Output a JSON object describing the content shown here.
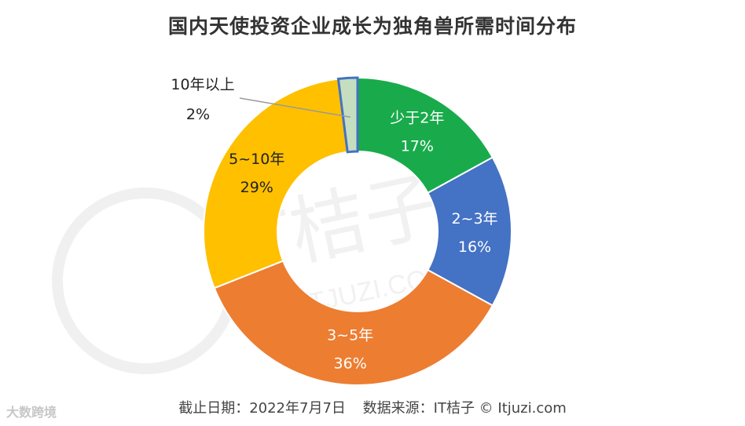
{
  "title": "国内天使投资企业成长为独角兽所需时间分布",
  "chart_data": {
    "type": "pie",
    "donut": true,
    "title": "国内天使投资企业成长为独角兽所需时间分布",
    "slices": [
      {
        "label": "少于2年",
        "value": 17,
        "display": "17%",
        "color": "#19AB4B",
        "label_color": "#ffffff"
      },
      {
        "label": "2~3年",
        "value": 16,
        "display": "16%",
        "color": "#4472C4",
        "label_color": "#ffffff"
      },
      {
        "label": "3~5年",
        "value": 36,
        "display": "36%",
        "color": "#ED7D31",
        "label_color": "#ffffff"
      },
      {
        "label": "5~10年",
        "value": 29,
        "display": "29%",
        "color": "#FFC000",
        "label_color": "#222222"
      },
      {
        "label": "10年以上",
        "value": 2,
        "display": "2%",
        "color": "#C6DEC0",
        "label_color": "#222222"
      }
    ]
  },
  "footer": {
    "date": "截止日期：2022年7月7日",
    "source": "数据来源：IT桔子 © Itjuzi.com"
  },
  "watermark": {
    "center": "IT桔子",
    "url": "ITJUZI.COM",
    "corner": "大数跨境"
  }
}
